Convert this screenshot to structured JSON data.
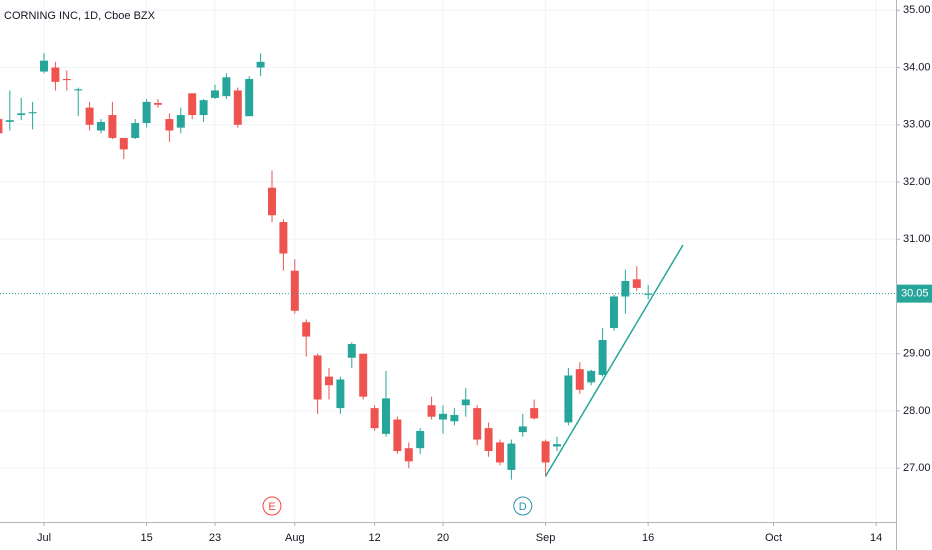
{
  "chart_data": {
    "type": "candlestick",
    "title": "CORNING INC, 1D, Cboe BZX",
    "x": [
      -4,
      -3,
      -2,
      -1,
      0,
      1,
      2,
      3,
      4,
      5,
      6,
      7,
      8,
      9,
      10,
      11,
      12,
      13,
      14,
      15,
      16,
      17,
      18,
      19,
      20,
      21,
      22,
      23,
      24,
      25,
      26,
      27,
      28,
      29,
      30,
      31,
      32,
      33,
      34,
      35,
      36,
      37,
      38,
      39,
      40,
      41,
      42,
      43,
      44,
      45,
      46,
      47,
      48,
      49,
      50,
      51,
      52,
      53
    ],
    "open": [
      33.1,
      33.05,
      33.17,
      33.2,
      33.93,
      34.0,
      33.8,
      33.6,
      33.3,
      32.9,
      33.17,
      32.77,
      32.77,
      33.03,
      33.38,
      33.1,
      32.95,
      33.55,
      33.17,
      33.47,
      33.5,
      33.6,
      33.15,
      34.0,
      31.9,
      31.3,
      30.45,
      29.55,
      28.97,
      28.6,
      28.05,
      28.93,
      29.0,
      28.05,
      27.6,
      27.85,
      27.35,
      27.35,
      28.1,
      27.85,
      27.82,
      28.1,
      28.05,
      27.7,
      27.45,
      26.97,
      27.63,
      28.05,
      27.47,
      27.38,
      27.8,
      28.73,
      28.5,
      28.63,
      29.45,
      30.0,
      30.3,
      30.03
    ],
    "high": [
      33.2,
      33.6,
      33.47,
      33.4,
      34.25,
      34.1,
      33.95,
      33.65,
      33.4,
      33.1,
      33.4,
      32.77,
      33.1,
      33.45,
      33.45,
      33.2,
      33.3,
      33.55,
      33.45,
      33.7,
      33.9,
      33.65,
      33.85,
      34.25,
      32.2,
      31.35,
      30.65,
      29.6,
      29.0,
      28.75,
      28.6,
      29.2,
      29.0,
      28.1,
      28.7,
      27.9,
      27.45,
      27.7,
      28.25,
      28.1,
      28.05,
      28.4,
      28.1,
      27.8,
      27.5,
      27.5,
      27.95,
      28.2,
      27.5,
      27.55,
      28.75,
      28.85,
      28.72,
      29.45,
      30.03,
      30.47,
      30.53,
      30.2
    ],
    "low": [
      32.8,
      32.9,
      33.08,
      32.92,
      33.9,
      33.6,
      33.6,
      33.15,
      32.9,
      32.85,
      32.75,
      32.4,
      32.75,
      32.95,
      33.3,
      32.7,
      32.85,
      33.1,
      33.05,
      33.45,
      33.45,
      32.95,
      33.15,
      33.85,
      31.3,
      30.45,
      29.7,
      28.95,
      27.95,
      28.2,
      27.95,
      28.75,
      28.2,
      27.65,
      27.55,
      27.25,
      27.0,
      27.25,
      27.85,
      27.6,
      27.75,
      27.9,
      27.4,
      27.2,
      27.05,
      26.8,
      27.55,
      27.85,
      26.85,
      27.3,
      27.75,
      28.3,
      28.45,
      28.6,
      29.4,
      29.7,
      30.1,
      29.95
    ],
    "close": [
      32.85,
      33.08,
      33.2,
      33.22,
      34.12,
      33.75,
      33.78,
      33.62,
      33.0,
      33.05,
      32.77,
      32.57,
      33.03,
      33.4,
      33.35,
      32.9,
      33.17,
      33.17,
      33.43,
      33.6,
      33.83,
      33.0,
      33.8,
      34.1,
      31.42,
      30.75,
      29.75,
      29.3,
      28.2,
      28.45,
      28.55,
      29.17,
      28.25,
      27.7,
      28.22,
      27.3,
      27.12,
      27.65,
      27.9,
      27.95,
      27.93,
      28.2,
      27.5,
      27.3,
      27.1,
      27.43,
      27.73,
      27.87,
      27.1,
      27.42,
      28.62,
      28.37,
      28.7,
      29.24,
      30.0,
      30.27,
      30.15,
      30.05
    ],
    "up_color": "#26a69a",
    "down_color": "#ef5350",
    "xlim": [
      -3.86,
      74.74
    ],
    "ylim": [
      26.06,
      35.18
    ],
    "yticks": [
      {
        "value": 35,
        "label": "35.00"
      },
      {
        "value": 34,
        "label": "34.00"
      },
      {
        "value": 33,
        "label": "33.00"
      },
      {
        "value": 32,
        "label": "32.00"
      },
      {
        "value": 31,
        "label": "31.00"
      },
      {
        "value": 29,
        "label": "29.00"
      },
      {
        "value": 28,
        "label": "28.00"
      },
      {
        "value": 27,
        "label": "27.00"
      }
    ],
    "xticks": [
      {
        "value": 0,
        "label": "Jul"
      },
      {
        "value": 9,
        "label": "15"
      },
      {
        "value": 15,
        "label": "23"
      },
      {
        "value": 22,
        "label": "Aug"
      },
      {
        "value": 29,
        "label": "12"
      },
      {
        "value": 35,
        "label": "20"
      },
      {
        "value": 44,
        "label": "Sep"
      },
      {
        "value": 53,
        "label": "16"
      },
      {
        "value": 64,
        "label": "Oct"
      },
      {
        "value": 73,
        "label": "14"
      }
    ],
    "grid": true,
    "last_price": 30.05,
    "trendline": {
      "x": [
        44,
        56.05
      ],
      "y": [
        26.86,
        30.9
      ],
      "color": "#26a69a"
    },
    "events": [
      {
        "x": 20,
        "label": "E",
        "color": "#f44336"
      },
      {
        "x": 42,
        "label": "D",
        "color": "#2a8fb0"
      }
    ]
  }
}
